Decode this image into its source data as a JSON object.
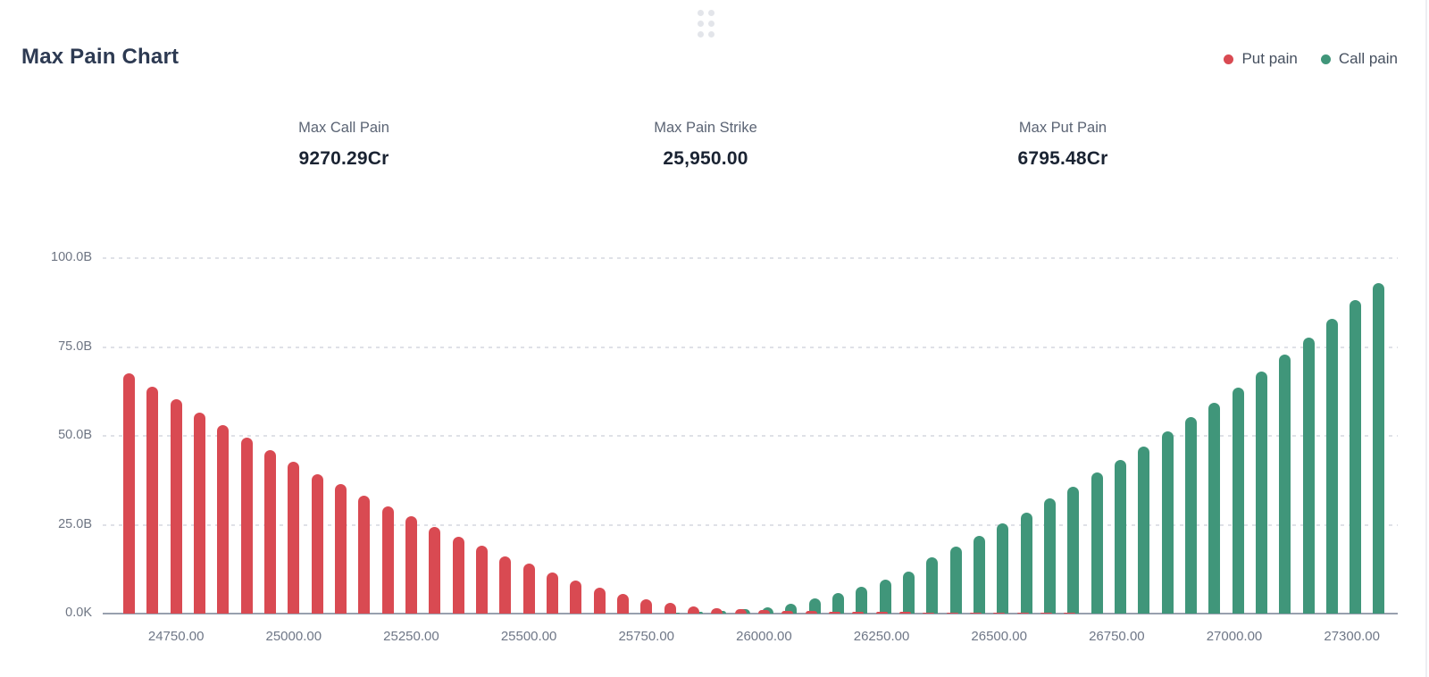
{
  "header": {
    "title": "Max Pain Chart"
  },
  "drag_handle": {
    "icon": "drag-dots-icon",
    "dot_count": 6,
    "color": "#e3e5ea"
  },
  "legend": [
    {
      "label": "Put pain",
      "color": "#d94a52"
    },
    {
      "label": "Call pain",
      "color": "#40967a"
    }
  ],
  "stats": [
    {
      "label": "Max Call Pain",
      "value": "9270.29Cr"
    },
    {
      "label": "Max Pain Strike",
      "value": "25,950.00"
    },
    {
      "label": "Max Put Pain",
      "value": "6795.48Cr"
    }
  ],
  "chart_data": {
    "type": "bar",
    "title": "Max Pain Chart",
    "unit": "B",
    "ylim": [
      0,
      100
    ],
    "grid": "dashed horizontal",
    "legend_position": "top-right",
    "y_tick_labels": [
      "100.0B",
      "75.0B",
      "50.0B",
      "25.0B",
      "0.0K"
    ],
    "y_tick_values": [
      100,
      75,
      50,
      25,
      0
    ],
    "x": [
      24650,
      24700,
      24750,
      24800,
      24850,
      24900,
      24950,
      25000,
      25050,
      25100,
      25150,
      25200,
      25250,
      25300,
      25350,
      25400,
      25450,
      25500,
      25550,
      25600,
      25650,
      25700,
      25750,
      25800,
      25850,
      25900,
      25950,
      26000,
      26050,
      26100,
      26150,
      26200,
      26250,
      26300,
      26350,
      26400,
      26450,
      26500,
      26550,
      26600,
      26650,
      26700,
      26750,
      26800,
      26850,
      26900,
      26950,
      27000,
      27050,
      27100,
      27150,
      27200,
      27300,
      27400
    ],
    "x_tick_labels": [
      "24750.00",
      "25000.00",
      "25250.00",
      "25500.00",
      "25750.00",
      "26000.00",
      "26250.00",
      "26500.00",
      "26750.00",
      "27000.00",
      "27300.00"
    ],
    "x_tick_indices": [
      2,
      7,
      12,
      17,
      22,
      27,
      32,
      37,
      42,
      47,
      52
    ],
    "series": [
      {
        "name": "Put pain",
        "color": "#d94a52",
        "values": [
          67.5,
          63.8,
          60.3,
          56.5,
          53.0,
          49.4,
          46.0,
          42.8,
          39.2,
          36.4,
          33.2,
          30.1,
          27.3,
          24.3,
          21.5,
          19.0,
          16.2,
          14.0,
          11.5,
          9.2,
          7.4,
          5.6,
          4.1,
          2.9,
          1.9,
          1.5,
          1.2,
          1.0,
          0.8,
          0.7,
          0.6,
          0.5,
          0.45,
          0.4,
          0.35,
          0.3,
          0.25,
          0.2,
          0.15,
          0.1,
          0.1,
          0,
          0,
          0,
          0,
          0,
          0,
          0,
          0,
          0,
          0,
          0,
          0,
          0
        ]
      },
      {
        "name": "Call pain",
        "color": "#40967a",
        "values": [
          0,
          0,
          0,
          0,
          0,
          0,
          0,
          0,
          0,
          0,
          0,
          0,
          0,
          0,
          0,
          0,
          0,
          0,
          0,
          0,
          0,
          0,
          0,
          0.2,
          0.4,
          0.8,
          1.2,
          1.7,
          2.8,
          4.2,
          5.9,
          7.6,
          9.6,
          11.9,
          15.9,
          18.9,
          21.9,
          25.4,
          28.5,
          32.5,
          35.8,
          39.8,
          43.1,
          47.1,
          51.2,
          55.4,
          59.4,
          63.5,
          68.0,
          72.8,
          77.6,
          82.9,
          88.2,
          92.9
        ]
      }
    ]
  }
}
